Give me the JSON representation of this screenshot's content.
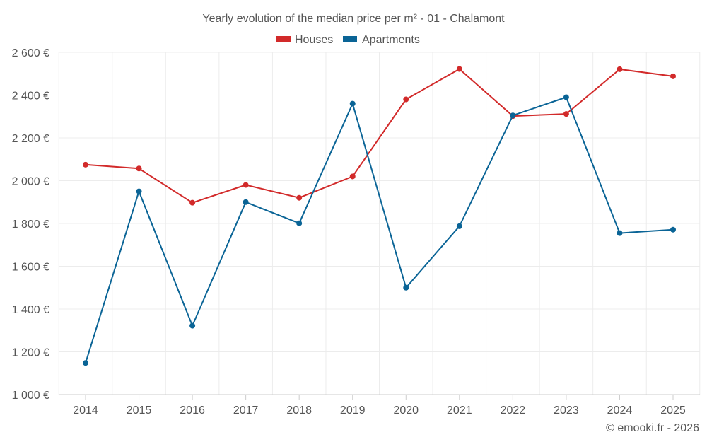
{
  "chart_data": {
    "type": "line",
    "title": "Yearly evolution of the median price per m² - 01 - Chalamont",
    "categories": [
      "2014",
      "2015",
      "2016",
      "2017",
      "2018",
      "2019",
      "2020",
      "2021",
      "2022",
      "2023",
      "2024",
      "2025"
    ],
    "series": [
      {
        "name": "Houses",
        "color": "#d22a2a",
        "values": [
          2075,
          2057,
          1897,
          1980,
          1920,
          2020,
          2380,
          2522,
          2302,
          2312,
          2521,
          2488
        ]
      },
      {
        "name": "Apartments",
        "color": "#0a6496",
        "values": [
          1148,
          1950,
          1322,
          1900,
          1801,
          2360,
          1500,
          1787,
          2305,
          2390,
          1755,
          1771
        ]
      }
    ],
    "ylim": [
      1000,
      2600
    ],
    "yticks": [
      1000,
      1200,
      1400,
      1600,
      1800,
      2000,
      2200,
      2400,
      2600
    ],
    "ytick_labels": [
      "1 000 €",
      "1 200 €",
      "1 400 €",
      "1 600 €",
      "1 800 €",
      "2 000 €",
      "2 200 €",
      "2 400 €",
      "2 600 €"
    ],
    "xlabel": "",
    "ylabel": "",
    "grid": true,
    "legend_position": "top-center"
  },
  "credit": "© emooki.fr - 2026"
}
